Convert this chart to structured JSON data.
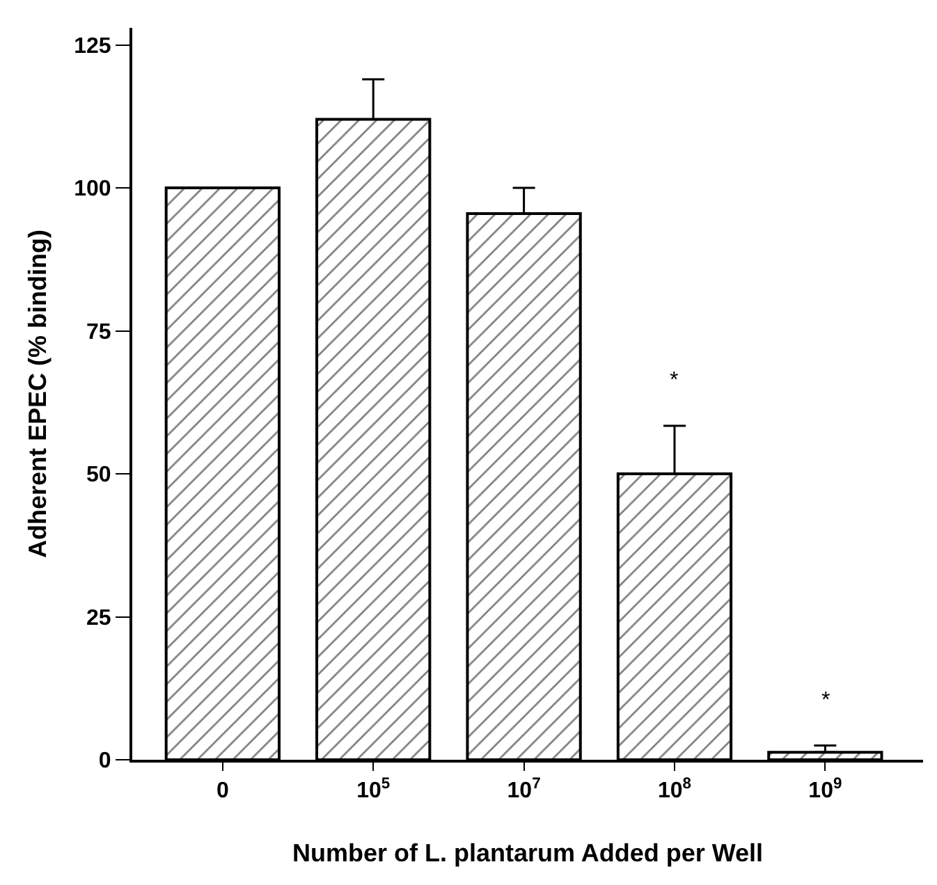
{
  "chart_data": {
    "type": "bar",
    "xlabel": "Number of L. plantarum Added per Well",
    "ylabel": "Adherent EPEC (% binding)",
    "categories": [
      "0",
      "10$^{5}$",
      "10$^{7}$",
      "10$^{8}$",
      "10$^{9}$"
    ],
    "values": [
      100,
      112,
      95.5,
      50,
      1.3
    ],
    "errors": [
      null,
      [
        112,
        119
      ],
      [
        95.5,
        100
      ],
      [
        50,
        58.4
      ],
      [
        1.3,
        2.5
      ]
    ],
    "color": "#000000",
    "ylim": [
      0,
      128
    ],
    "yticks": [
      0,
      25,
      50,
      75,
      100,
      125
    ],
    "annotations": [
      "*",
      "*"
    ]
  }
}
